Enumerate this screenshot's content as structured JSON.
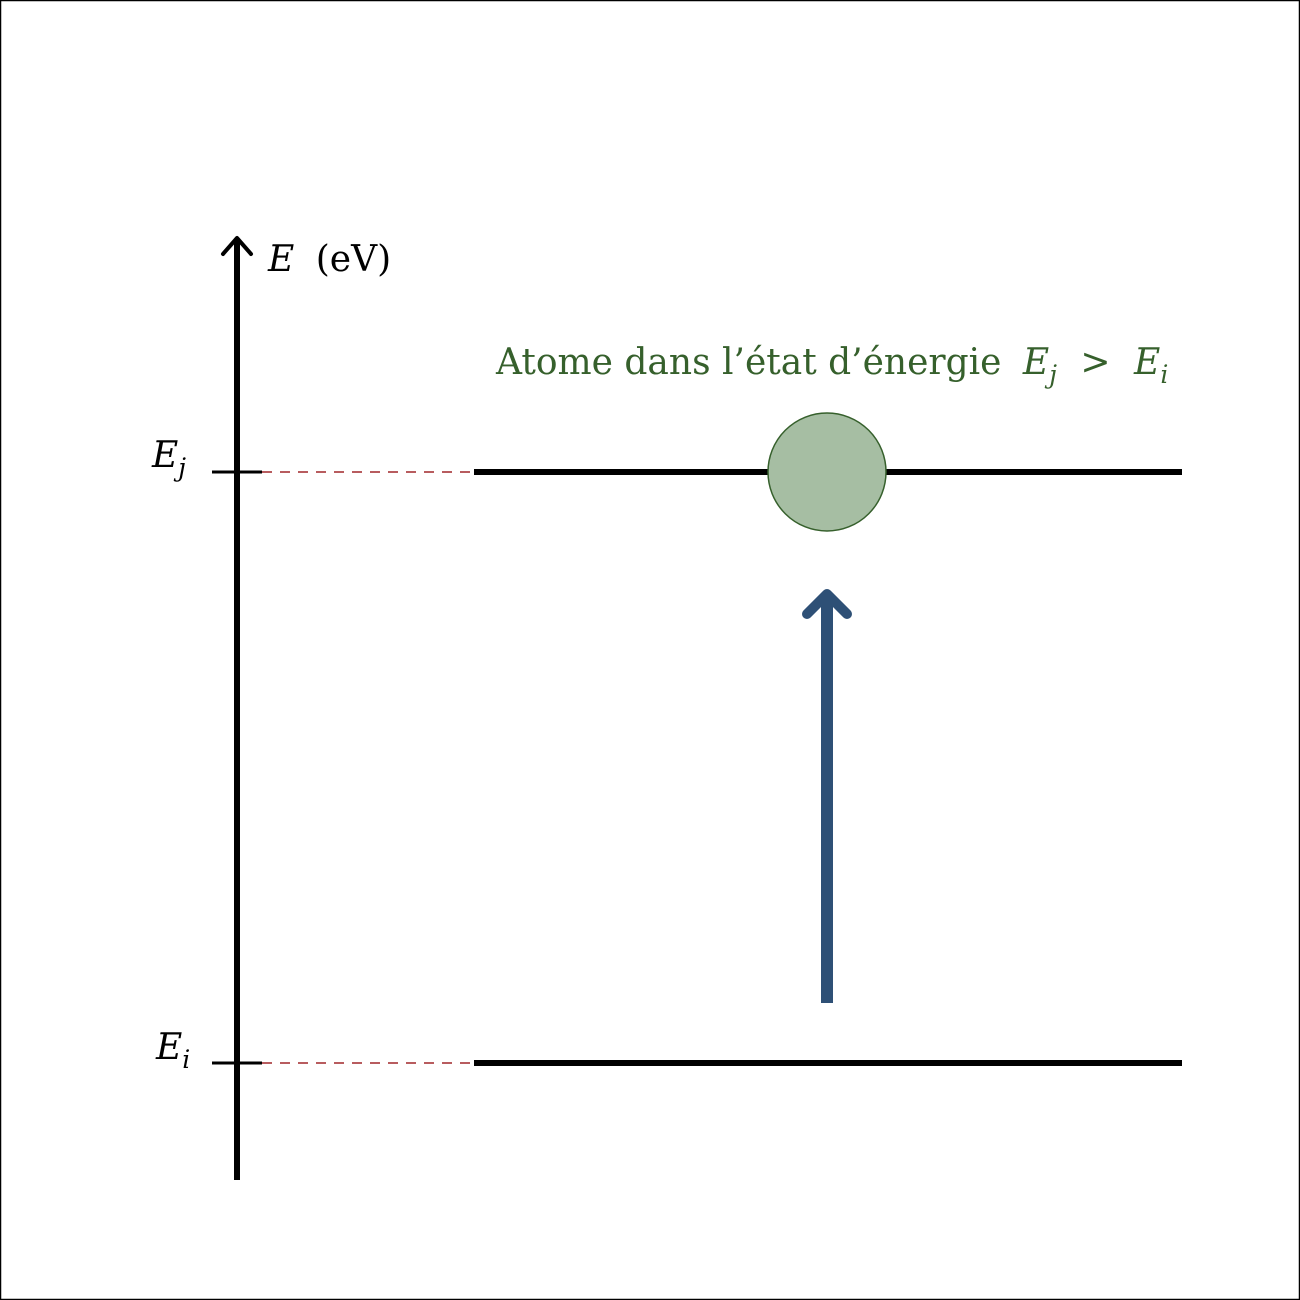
{
  "axis": {
    "symbol": "E",
    "unit": "(eV)"
  },
  "levels": {
    "upper": {
      "symbol": "E",
      "subscript": "j"
    },
    "lower": {
      "symbol": "E",
      "subscript": "i"
    }
  },
  "caption": {
    "text": "Atome dans l’état d’énergie",
    "lhs": "E",
    "lhs_sub": "j",
    "op": ">",
    "rhs": "E",
    "rhs_sub": "i"
  },
  "colors": {
    "axis": "#000000",
    "level_line": "#000000",
    "guide_dash": "#a0262a",
    "caption": "#36602c",
    "atom_fill": "#a6bea3",
    "atom_stroke": "#36602c",
    "arrow": "#2e5076",
    "frame": "#000000"
  }
}
